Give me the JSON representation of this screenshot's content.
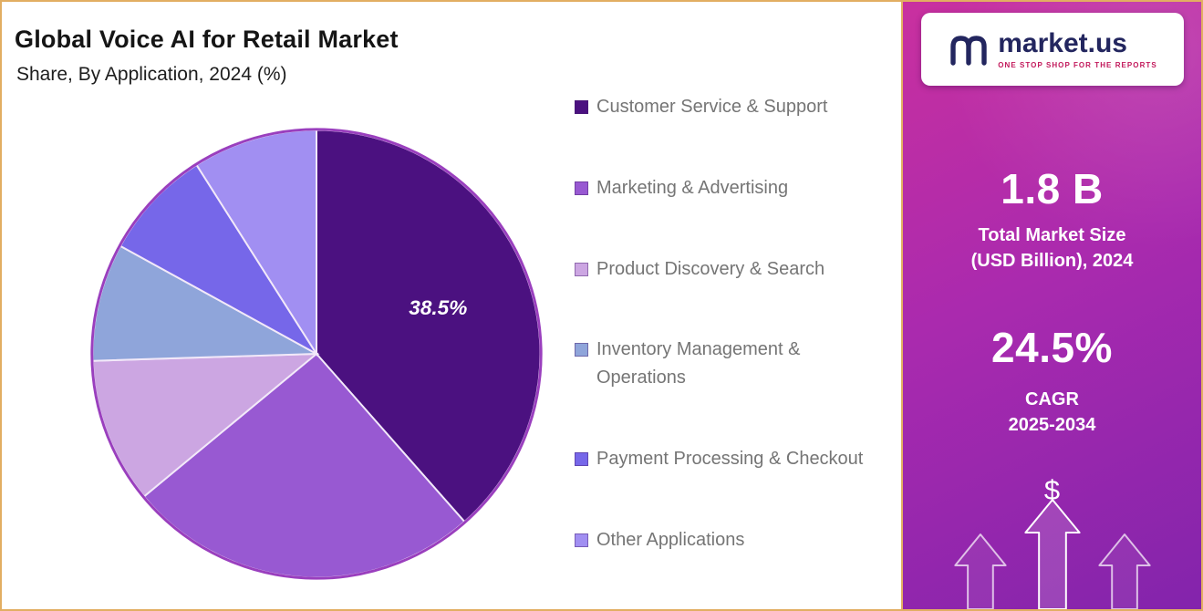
{
  "header": {
    "title": "Global Voice AI for Retail Market",
    "subtitle": "Share, By Application, 2024 (%)"
  },
  "chart_data": {
    "type": "pie",
    "title": "Global Voice AI for Retail Market",
    "subtitle": "Share, By Application, 2024 (%)",
    "unit": "%",
    "start_angle_deg": 0,
    "direction": "clockwise",
    "legend_position": "right",
    "slices": [
      {
        "label": "Customer Service & Support",
        "value": 38.5,
        "color": "#4B1180",
        "value_label": "38.5%"
      },
      {
        "label": "Marketing & Advertising",
        "value": 25.5,
        "color": "#9859D2"
      },
      {
        "label": "Product Discovery & Search",
        "value": 10.5,
        "color": "#CCA6E2"
      },
      {
        "label": "Inventory Management & Operations",
        "value": 8.5,
        "color": "#8FA5DA"
      },
      {
        "label": "Payment Processing & Checkout",
        "value": 8.0,
        "color": "#7667E9"
      },
      {
        "label": "Other Applications",
        "value": 9.0,
        "color": "#A18FF2"
      }
    ]
  },
  "sidebar": {
    "logo": {
      "brand": "market.us",
      "tagline": "ONE STOP SHOP FOR THE REPORTS"
    },
    "market_size": {
      "value": "1.8 B",
      "label_line1": "Total Market Size",
      "label_line2": "(USD Billion), 2024"
    },
    "cagr": {
      "value": "24.5%",
      "label": "CAGR",
      "period": "2025-2034"
    },
    "dollar_symbol": "$"
  }
}
